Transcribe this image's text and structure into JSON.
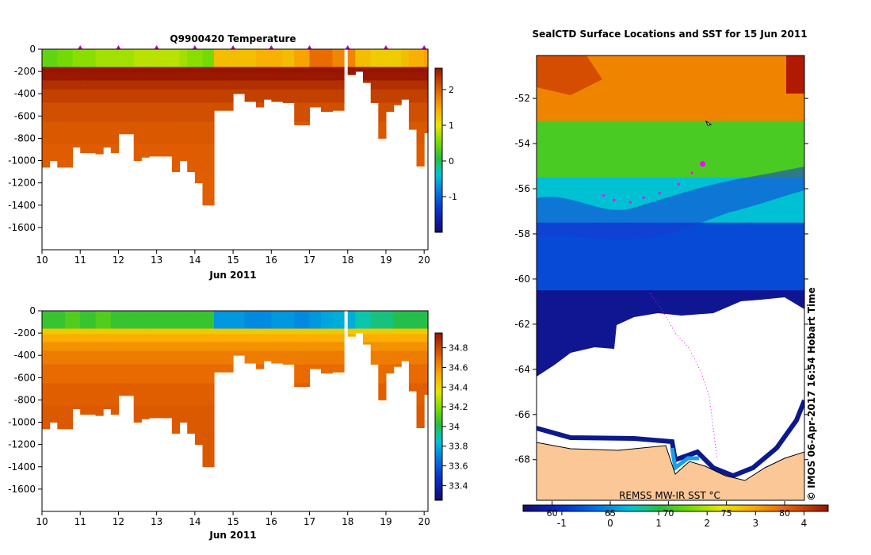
{
  "chart_data": [
    {
      "type": "heatmap",
      "panel": "temperature-section",
      "title": "Q9900420  Temperature",
      "xlabel": "Jun 2011",
      "x_ticks": [
        "10",
        "11",
        "12",
        "13",
        "14",
        "15",
        "16",
        "17",
        "18",
        "19",
        "20"
      ],
      "xlim": [
        10,
        20.1
      ],
      "ylim": [
        -1800,
        0
      ],
      "y_ticks": [
        "0",
        "-200",
        "-400",
        "-600",
        "-800",
        "-1000",
        "-1200",
        "-1400",
        "-1600"
      ],
      "profile_days": [
        10.0,
        10.2,
        10.4,
        10.6,
        10.8,
        11.0,
        11.2,
        11.4,
        11.6,
        11.8,
        12.0,
        12.2,
        12.4,
        12.6,
        12.8,
        13.0,
        13.2,
        13.4,
        13.6,
        13.8,
        14.0,
        14.2,
        14.5,
        14.8,
        15.0,
        15.3,
        15.6,
        15.8,
        16.0,
        16.3,
        16.6,
        16.8,
        17.0,
        17.3,
        17.6,
        17.9,
        18.0,
        18.2,
        18.4,
        18.6,
        18.8,
        19.0,
        19.2,
        19.4,
        19.6,
        19.8,
        20.0
      ],
      "profile_max_depth": [
        1060,
        1000,
        1060,
        1060,
        880,
        930,
        930,
        940,
        880,
        930,
        760,
        760,
        1000,
        970,
        960,
        960,
        960,
        1100,
        1000,
        1100,
        1200,
        1400,
        550,
        550,
        400,
        470,
        520,
        450,
        470,
        480,
        680,
        680,
        520,
        560,
        550,
        0,
        230,
        200,
        300,
        480,
        800,
        560,
        500,
        450,
        720,
        1050,
        750
      ],
      "mixed_layer_temp": [
        0.4,
        0.4,
        0.5,
        0.5,
        0.6,
        0.6,
        0.6,
        0.7,
        0.7,
        0.7,
        0.7,
        0.7,
        0.8,
        0.8,
        0.8,
        0.8,
        0.8,
        0.8,
        0.7,
        0.6,
        0.6,
        0.5,
        1.3,
        1.3,
        1.3,
        1.3,
        1.4,
        1.4,
        1.4,
        1.3,
        1.5,
        1.5,
        1.9,
        1.9,
        1.7,
        1.7,
        1.7,
        1.3,
        1.3,
        1.2,
        1.2,
        1.2,
        1.2,
        1.3,
        1.4,
        1.4,
        1.5
      ],
      "deep_temp": 2.0,
      "surface_markers": [
        11,
        12,
        13,
        14,
        15,
        16,
        17,
        18,
        19,
        20
      ],
      "colorbar": {
        "min": -2.0,
        "max": 2.6,
        "ticks": [
          "2",
          "1",
          "0",
          "-1"
        ],
        "tick_values": [
          2,
          1,
          0,
          -1
        ]
      }
    },
    {
      "type": "heatmap",
      "panel": "salinity-section",
      "title": "",
      "xlabel": "Jun 2011",
      "x_ticks": [
        "10",
        "11",
        "12",
        "13",
        "14",
        "15",
        "16",
        "17",
        "18",
        "19",
        "20"
      ],
      "xlim": [
        10,
        20.1
      ],
      "ylim": [
        -1800,
        0
      ],
      "y_ticks": [
        "0",
        "-200",
        "-400",
        "-600",
        "-800",
        "-1000",
        "-1200",
        "-1400",
        "-1600"
      ],
      "mixed_layer_salinity": [
        34.05,
        34.05,
        34.05,
        34.1,
        34.1,
        34.05,
        34.05,
        34.1,
        34.1,
        34.05,
        34.05,
        34.05,
        34.05,
        34.05,
        34.05,
        34.05,
        34.05,
        34.05,
        34.05,
        34.05,
        34.05,
        34.05,
        33.75,
        33.75,
        33.75,
        33.72,
        33.72,
        33.72,
        33.75,
        33.75,
        33.72,
        33.72,
        33.75,
        33.78,
        33.8,
        33.8,
        33.8,
        33.9,
        33.9,
        33.95,
        33.95,
        33.95,
        34.0,
        34.0,
        34.0,
        34.0,
        34.0
      ],
      "deep_salinity": 34.75,
      "colorbar": {
        "min": 33.25,
        "max": 34.95,
        "ticks": [
          "34.8",
          "34.6",
          "34.4",
          "34.2",
          "34",
          "33.8",
          "33.6",
          "33.4"
        ],
        "tick_values": [
          34.8,
          34.6,
          34.4,
          34.2,
          34.0,
          33.8,
          33.6,
          33.4
        ]
      }
    },
    {
      "type": "heatmap",
      "panel": "sst-map",
      "title": "SealCTD Surface Locations and SST for 15 Jun 2011",
      "y_ticks": [
        "-52",
        "-54",
        "-56",
        "-58",
        "-60",
        "-62",
        "-64",
        "-66",
        "-68"
      ],
      "ylim": [
        -69.8,
        -50.1
      ],
      "colorbar": {
        "min": -1.8,
        "max": 4.5,
        "ticks_celsius": [
          "-1",
          "0",
          "1",
          "2",
          "3",
          "4"
        ],
        "celsius_values": [
          -1,
          0,
          1,
          2,
          3,
          4
        ],
        "ticks_fahrenheit": [
          "60",
          "65",
          "70",
          "75",
          "80"
        ],
        "fahrenheit_positions_c": [
          -1.2,
          0.0,
          1.2,
          2.4,
          3.6
        ]
      },
      "sst_bands": [
        {
          "lat_from": -50.1,
          "lat_to": -53.0,
          "temp": 3.3
        },
        {
          "lat_from": -53.0,
          "lat_to": -55.5,
          "temp": 1.3
        },
        {
          "lat_from": -55.5,
          "lat_to": -57.5,
          "temp": 0.4
        },
        {
          "lat_from": -57.5,
          "lat_to": -60.5,
          "temp": -0.7
        },
        {
          "lat_from": -60.5,
          "lat_to": -64.5,
          "temp": -1.5
        }
      ],
      "track_points": [
        {
          "lat": -54.9,
          "lon_frac": 0.62
        },
        {
          "lat": -55.3,
          "lon_frac": 0.58
        },
        {
          "lat": -55.8,
          "lon_frac": 0.53
        },
        {
          "lat": -56.2,
          "lon_frac": 0.46
        },
        {
          "lat": -56.4,
          "lon_frac": 0.4
        },
        {
          "lat": -56.6,
          "lon_frac": 0.35
        },
        {
          "lat": -56.5,
          "lon_frac": 0.29
        },
        {
          "lat": -56.3,
          "lon_frac": 0.25
        }
      ],
      "track_color": "#ff00ff",
      "land_color": "#fcc796",
      "ice_color": "#ffffff",
      "source_label": "REMSS MW-IR SST °C",
      "credit": "© IMOS 06-Apr-2017 16:54 Hobart Time"
    }
  ]
}
